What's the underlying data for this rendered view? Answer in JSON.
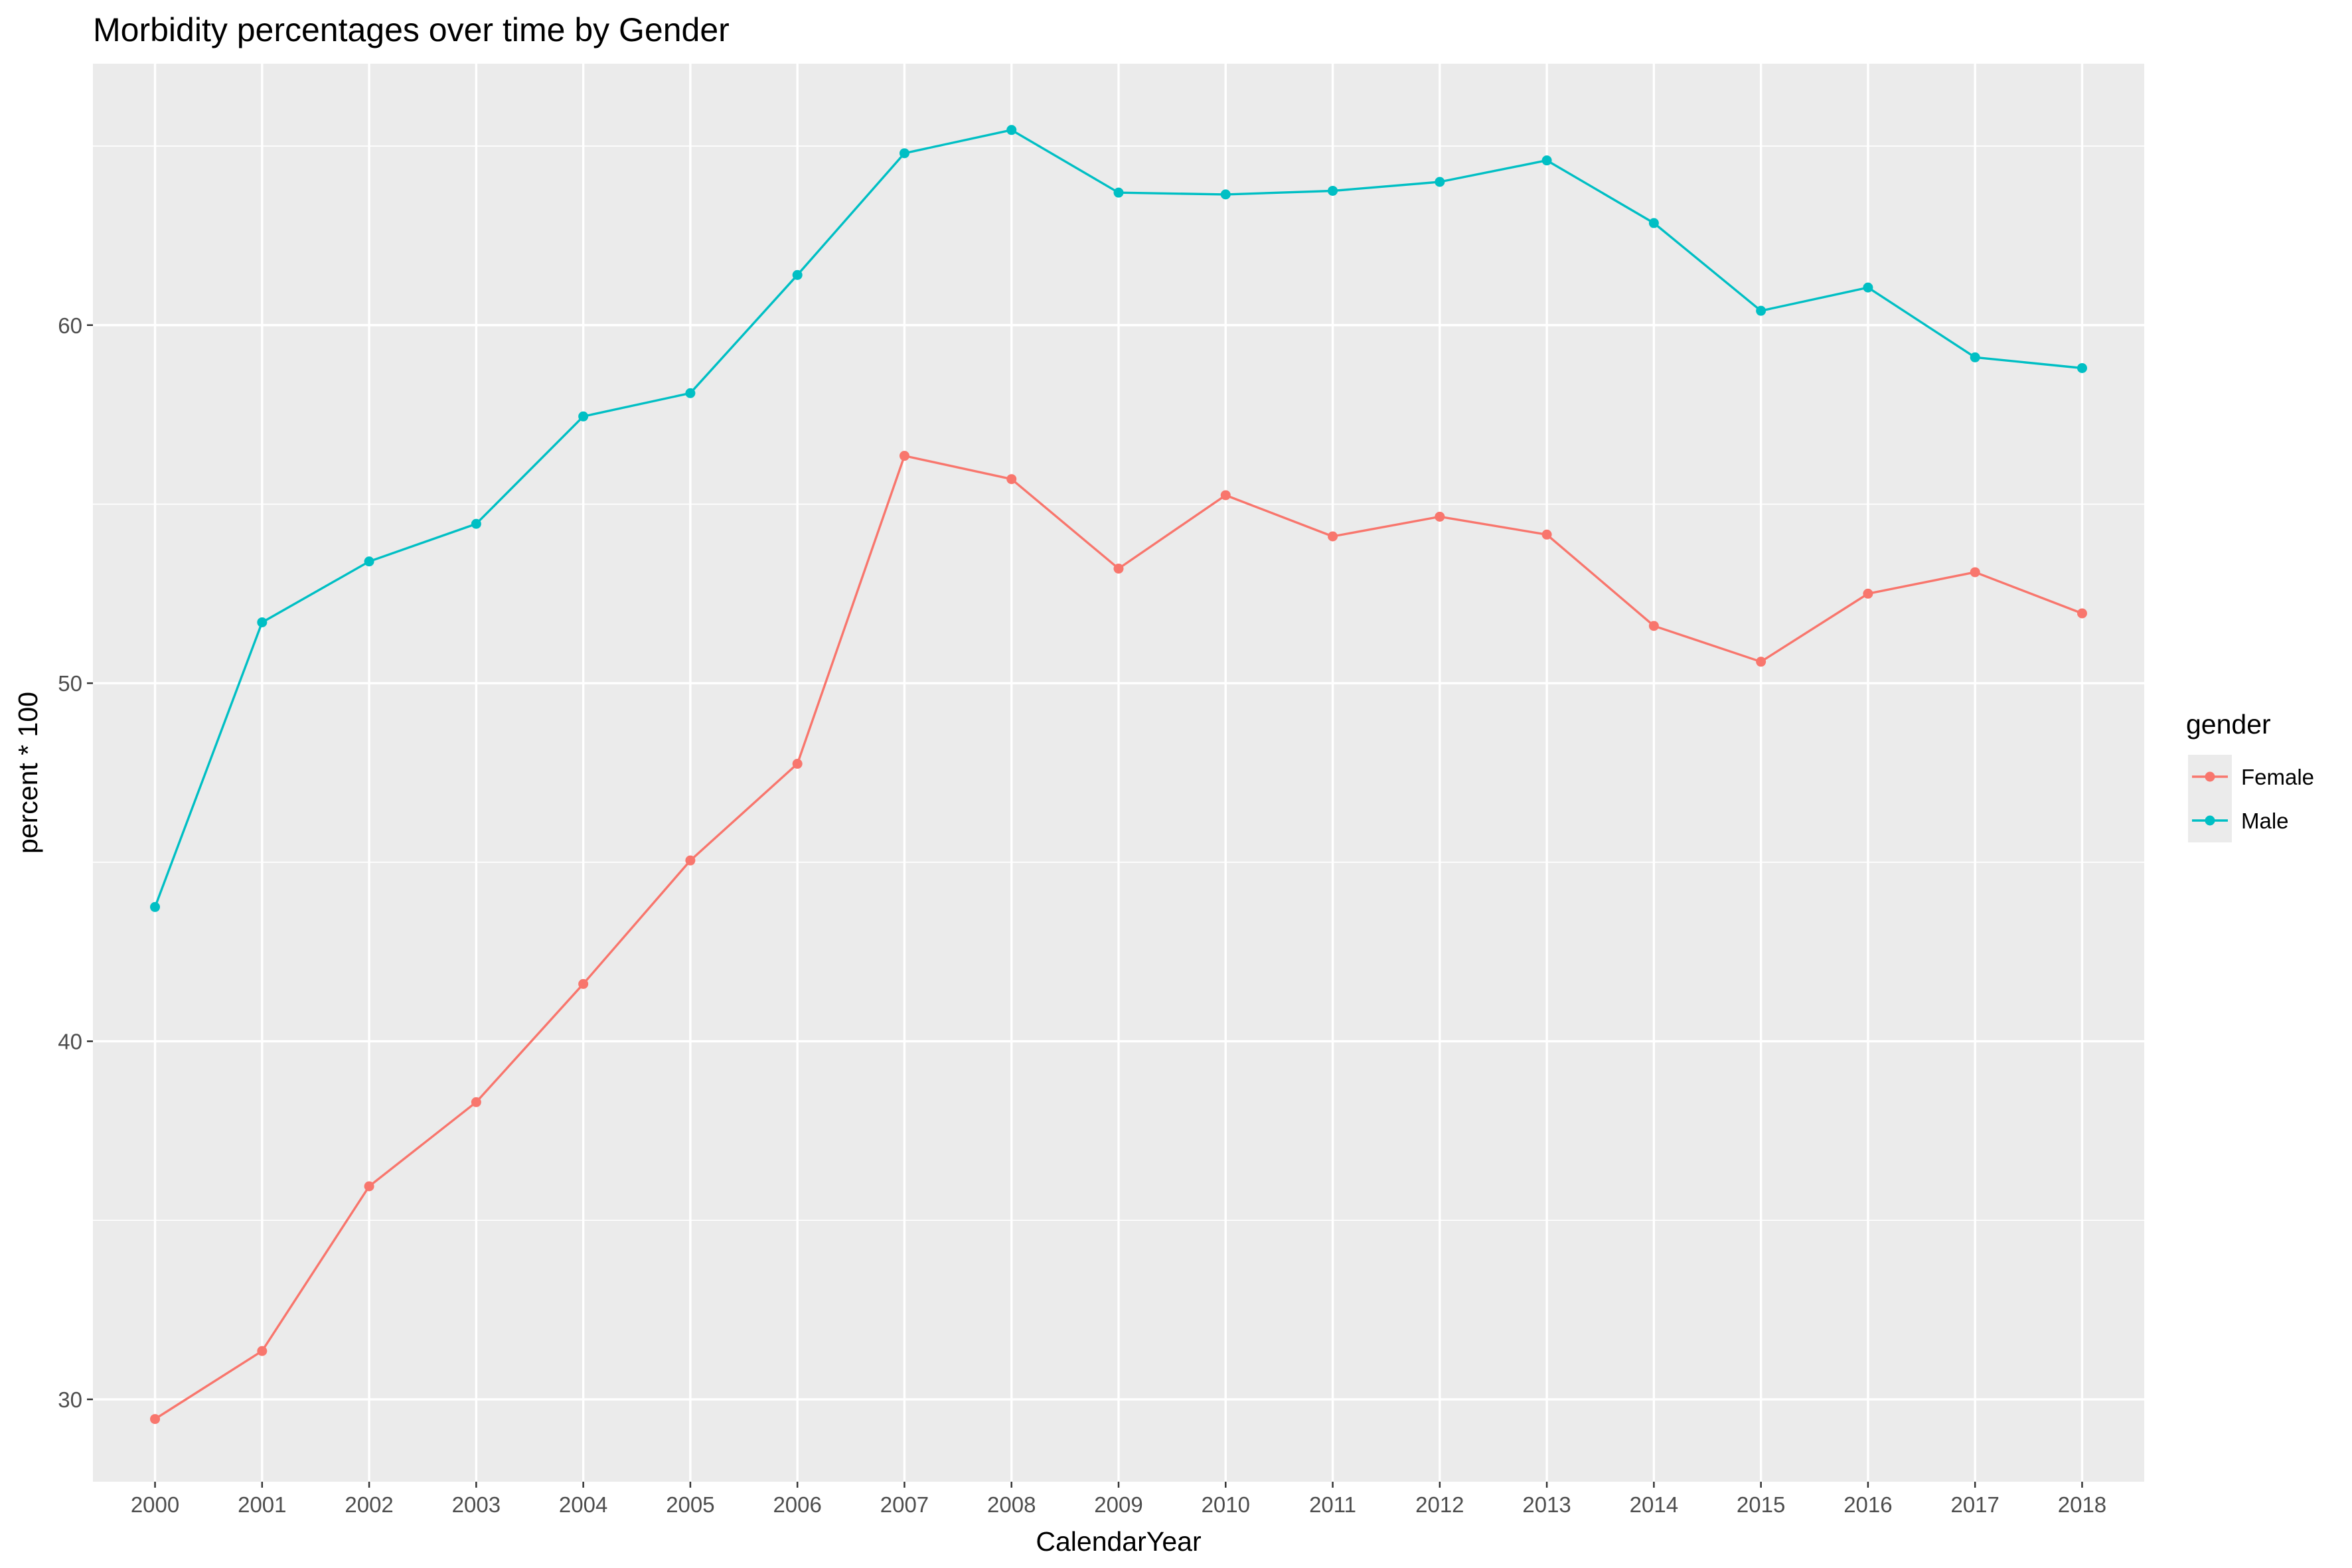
{
  "chart_data": {
    "type": "line",
    "title": "Morbidity percentages over time by Gender",
    "xlabel": "CalendarYear",
    "ylabel": "percent * 100",
    "x": [
      "2000",
      "2001",
      "2002",
      "2003",
      "2004",
      "2005",
      "2006",
      "2007",
      "2008",
      "2009",
      "2010",
      "2011",
      "2012",
      "2013",
      "2014",
      "2015",
      "2016",
      "2017",
      "2018"
    ],
    "xlim": [
      1999.42,
      2018.58
    ],
    "ylim": [
      27.7,
      67.3
    ],
    "yticks": [
      30,
      40,
      50,
      60
    ],
    "ytick_labels": [
      "30",
      "40",
      "50",
      "60"
    ],
    "grid": true,
    "legend": {
      "title": "gender",
      "position": "right"
    },
    "series": [
      {
        "name": "Female",
        "color": "#F8766D",
        "values": [
          29.45,
          31.35,
          35.95,
          38.3,
          41.6,
          45.05,
          47.75,
          56.35,
          55.7,
          53.2,
          55.25,
          54.1,
          54.65,
          54.15,
          51.6,
          50.6,
          52.5,
          53.1,
          51.95
        ]
      },
      {
        "name": "Male",
        "color": "#00BFC4",
        "values": [
          43.75,
          51.7,
          53.4,
          54.45,
          57.45,
          58.1,
          61.4,
          64.8,
          65.45,
          63.7,
          63.65,
          63.75,
          64.0,
          64.6,
          62.85,
          60.4,
          61.05,
          59.1,
          58.8
        ]
      }
    ]
  },
  "colors": {
    "panel_background": "#EBEBEB",
    "grid_line": "#FFFFFF"
  }
}
